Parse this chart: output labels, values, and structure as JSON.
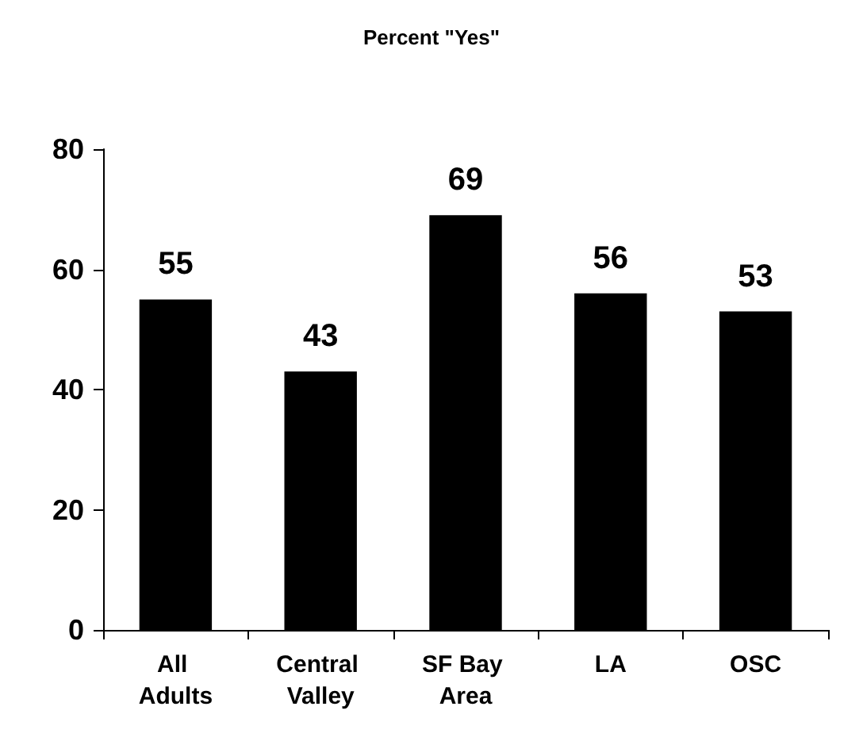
{
  "chart_data": {
    "type": "bar",
    "title": "Percent \"Yes\"",
    "categories": [
      "All Adults",
      "Central Valley",
      "SF Bay Area",
      "LA",
      "OSC"
    ],
    "values": [
      55,
      43,
      69,
      56,
      53
    ],
    "color": "#000000",
    "ylim": [
      0,
      80
    ],
    "yticks": [
      0,
      20,
      40,
      60,
      80
    ],
    "grid": false,
    "data_labels": true
  }
}
